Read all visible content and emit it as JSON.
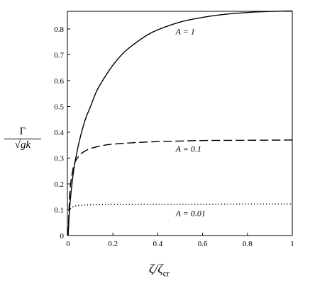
{
  "chart_data": {
    "type": "line",
    "title": "",
    "xlabel": "ζ/ζcr",
    "ylabel": "Γ/√gk",
    "xlim": [
      0,
      1
    ],
    "ylim": [
      0,
      0.87
    ],
    "grid": false,
    "legend": "none",
    "x_ticks": [
      "0",
      "0.2",
      "0.4",
      "0.6",
      "0.8",
      "1"
    ],
    "y_ticks": [
      "0",
      "0.1",
      "0.2",
      "0.3",
      "0.4",
      "0.5",
      "0.6",
      "0.7",
      "0.8"
    ],
    "x_tick_values": [
      0,
      0.2,
      0.4,
      0.6,
      0.8,
      1
    ],
    "y_tick_values": [
      0,
      0.1,
      0.2,
      0.3,
      0.4,
      0.5,
      0.6,
      0.7,
      0.8
    ],
    "series": [
      {
        "name": "A = 1",
        "style": "solid",
        "x": [
          0,
          0.005,
          0.01,
          0.02,
          0.03,
          0.05,
          0.075,
          0.1,
          0.125,
          0.15,
          0.2,
          0.25,
          0.3,
          0.35,
          0.4,
          0.5,
          0.6,
          0.7,
          0.8,
          0.9,
          1.0
        ],
        "y": [
          0,
          0.08,
          0.14,
          0.22,
          0.28,
          0.365,
          0.445,
          0.5,
          0.555,
          0.595,
          0.66,
          0.71,
          0.745,
          0.775,
          0.797,
          0.827,
          0.845,
          0.857,
          0.864,
          0.868,
          0.87
        ]
      },
      {
        "name": "A = 0.1",
        "style": "dashed",
        "x": [
          0,
          0.005,
          0.01,
          0.02,
          0.03,
          0.05,
          0.075,
          0.1,
          0.15,
          0.2,
          0.3,
          0.4,
          0.5,
          0.6,
          0.8,
          1.0
        ],
        "y": [
          0,
          0.12,
          0.19,
          0.25,
          0.283,
          0.31,
          0.327,
          0.337,
          0.348,
          0.354,
          0.36,
          0.364,
          0.366,
          0.368,
          0.369,
          0.37
        ]
      },
      {
        "name": "A = 0.01",
        "style": "dotted",
        "x": [
          0,
          0.003,
          0.006,
          0.01,
          0.02,
          0.03,
          0.05,
          0.1,
          0.2,
          0.4,
          0.6,
          0.8,
          1.0
        ],
        "y": [
          0,
          0.06,
          0.09,
          0.103,
          0.11,
          0.114,
          0.117,
          0.119,
          0.12,
          0.121,
          0.121,
          0.122,
          0.122
        ]
      }
    ],
    "annotations": [
      {
        "text": "A = 1",
        "x": 0.48,
        "y": 0.78
      },
      {
        "text": "A = 0.1",
        "x": 0.48,
        "y": 0.325
      },
      {
        "text": "A = 0.01",
        "x": 0.48,
        "y": 0.075
      }
    ]
  },
  "labels": {
    "ylabel_num": "Γ",
    "ylabel_den": "√gk",
    "xlabel_main": "ζ/ζ",
    "xlabel_sub": "cr"
  }
}
